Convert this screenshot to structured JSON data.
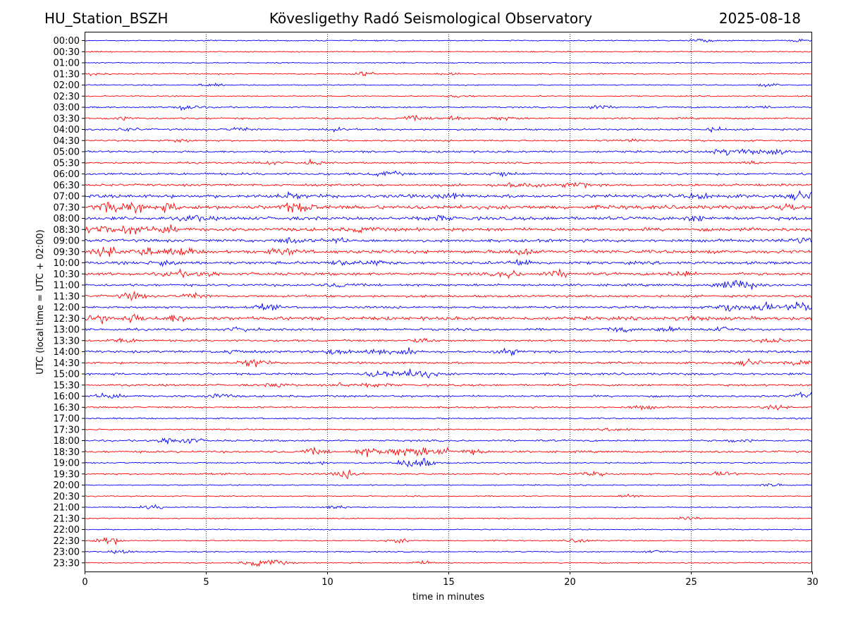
{
  "header": {
    "station": "HU_Station_BSZH",
    "observatory": "Kövesligethy Radó Seismological Observatory",
    "date": "2025-08-18"
  },
  "chart_data": {
    "type": "line",
    "title": "Kövesligethy Radó Seismological Observatory",
    "xlabel": "time in minutes",
    "ylabel": "UTC (local time = UTC + 02:00)",
    "xlim": [
      0,
      30
    ],
    "xticks": [
      0,
      5,
      10,
      15,
      20,
      25,
      30
    ],
    "grid": "vertical dotted lines at x = 5, 10, 15, 20, 25",
    "colors": [
      "#0000ff",
      "#ff0000"
    ],
    "rows": [
      {
        "label": "00:00",
        "color": "#0000ff",
        "level": 1,
        "events": [
          [
            25.5,
            1.5
          ],
          [
            29.5,
            1.2
          ]
        ]
      },
      {
        "label": "00:30",
        "color": "#ff0000",
        "level": 1,
        "events": []
      },
      {
        "label": "01:00",
        "color": "#0000ff",
        "level": 1,
        "events": []
      },
      {
        "label": "01:30",
        "color": "#ff0000",
        "level": 1,
        "events": [
          [
            0.3,
            1.5
          ],
          [
            11.5,
            2
          ],
          [
            15,
            1.5
          ]
        ]
      },
      {
        "label": "02:00",
        "color": "#0000ff",
        "level": 1,
        "events": [
          [
            5.2,
            1.3
          ],
          [
            28.3,
            1.3
          ]
        ]
      },
      {
        "label": "02:30",
        "color": "#ff0000",
        "level": 1,
        "events": [
          [
            15.5,
            1.3
          ]
        ]
      },
      {
        "label": "03:00",
        "color": "#0000ff",
        "level": 1.3,
        "events": [
          [
            4.2,
            3
          ],
          [
            21.2,
            2
          ],
          [
            28,
            1.6
          ]
        ]
      },
      {
        "label": "03:30",
        "color": "#ff0000",
        "level": 1.5,
        "events": [
          [
            1.5,
            1.6
          ],
          [
            13.5,
            1.8
          ],
          [
            15,
            2.5
          ],
          [
            17.3,
            1.6
          ]
        ]
      },
      {
        "label": "04:00",
        "color": "#0000ff",
        "level": 1.5,
        "events": [
          [
            1.8,
            1.5
          ],
          [
            6.4,
            1.6
          ],
          [
            10.3,
            1.5
          ],
          [
            26,
            1.6
          ]
        ]
      },
      {
        "label": "04:30",
        "color": "#ff0000",
        "level": 1.5,
        "events": [
          [
            4,
            1.3
          ],
          [
            22.8,
            1.5
          ]
        ]
      },
      {
        "label": "05:00",
        "color": "#0000ff",
        "level": 1.8,
        "events": [
          [
            26.3,
            3
          ],
          [
            27.3,
            2.5
          ],
          [
            28.5,
            2
          ]
        ]
      },
      {
        "label": "05:30",
        "color": "#ff0000",
        "level": 1.5,
        "events": [
          [
            9.3,
            2
          ],
          [
            7.5,
            1.5
          ],
          [
            27.5,
            1.5
          ]
        ]
      },
      {
        "label": "06:00",
        "color": "#0000ff",
        "level": 2,
        "events": [
          [
            12.5,
            2.5
          ],
          [
            17.2,
            2
          ]
        ]
      },
      {
        "label": "06:30",
        "color": "#ff0000",
        "level": 2,
        "events": [
          [
            20.3,
            3
          ],
          [
            17.5,
            2
          ],
          [
            18.5,
            1.8
          ]
        ]
      },
      {
        "label": "07:00",
        "color": "#0000ff",
        "level": 3,
        "events": [
          [
            8.5,
            2
          ],
          [
            15,
            2.5
          ],
          [
            25.5,
            2
          ],
          [
            29.7,
            4
          ]
        ]
      },
      {
        "label": "07:30",
        "color": "#ff0000",
        "level": 3.5,
        "events": [
          [
            1,
            4
          ],
          [
            2,
            4
          ],
          [
            3.5,
            3
          ],
          [
            8.5,
            3
          ],
          [
            9,
            3
          ],
          [
            29,
            3
          ]
        ]
      },
      {
        "label": "08:00",
        "color": "#0000ff",
        "level": 3,
        "events": [
          [
            4.5,
            2.5
          ],
          [
            14.5,
            2
          ],
          [
            25.2,
            2
          ]
        ]
      },
      {
        "label": "08:30",
        "color": "#ff0000",
        "level": 3,
        "events": [
          [
            0.7,
            4
          ],
          [
            2,
            4
          ],
          [
            3.3,
            3
          ],
          [
            11.5,
            2
          ]
        ]
      },
      {
        "label": "09:00",
        "color": "#0000ff",
        "level": 2.5,
        "events": [
          [
            8.5,
            3
          ],
          [
            10.3,
            2
          ],
          [
            29.5,
            3
          ]
        ]
      },
      {
        "label": "09:30",
        "color": "#ff0000",
        "level": 3,
        "events": [
          [
            1,
            4
          ],
          [
            2.5,
            4
          ],
          [
            4,
            4
          ],
          [
            8.2,
            3
          ],
          [
            18,
            3
          ]
        ]
      },
      {
        "label": "10:00",
        "color": "#0000ff",
        "level": 2.5,
        "events": [
          [
            3.3,
            3
          ],
          [
            10.6,
            2.5
          ],
          [
            18,
            3
          ],
          [
            12,
            2
          ]
        ]
      },
      {
        "label": "10:30",
        "color": "#ff0000",
        "level": 2.5,
        "events": [
          [
            3.8,
            2.5
          ],
          [
            5,
            2
          ],
          [
            17.5,
            3
          ],
          [
            19.5,
            3
          ],
          [
            24.5,
            2.5
          ]
        ]
      },
      {
        "label": "11:00",
        "color": "#0000ff",
        "level": 2,
        "events": [
          [
            10.5,
            2
          ],
          [
            26.5,
            4
          ],
          [
            27.3,
            4
          ]
        ]
      },
      {
        "label": "11:30",
        "color": "#ff0000",
        "level": 2,
        "events": [
          [
            2,
            3.5
          ],
          [
            4.5,
            2.5
          ]
        ]
      },
      {
        "label": "12:00",
        "color": "#0000ff",
        "level": 2,
        "events": [
          [
            7.5,
            2.5
          ],
          [
            26.5,
            4
          ],
          [
            28,
            4
          ],
          [
            29.5,
            5
          ]
        ]
      },
      {
        "label": "12:30",
        "color": "#ff0000",
        "level": 3,
        "events": [
          [
            0.5,
            4
          ],
          [
            2,
            3
          ],
          [
            3.8,
            3
          ],
          [
            25,
            2
          ]
        ]
      },
      {
        "label": "13:00",
        "color": "#0000ff",
        "level": 2,
        "events": [
          [
            6.5,
            2
          ],
          [
            22,
            2.5
          ],
          [
            24,
            2.5
          ],
          [
            26.3,
            3
          ]
        ]
      },
      {
        "label": "13:30",
        "color": "#ff0000",
        "level": 1.8,
        "events": [
          [
            1.6,
            2
          ],
          [
            14,
            2
          ],
          [
            28.3,
            2
          ]
        ]
      },
      {
        "label": "14:00",
        "color": "#0000ff",
        "level": 2,
        "events": [
          [
            10.5,
            3.5
          ],
          [
            12,
            3
          ],
          [
            13.5,
            2.5
          ],
          [
            17.5,
            2.5
          ],
          [
            6.3,
            2
          ]
        ]
      },
      {
        "label": "14:30",
        "color": "#ff0000",
        "level": 1.8,
        "events": [
          [
            7,
            4
          ],
          [
            27.5,
            3
          ],
          [
            29.5,
            2.5
          ]
        ]
      },
      {
        "label": "15:00",
        "color": "#0000ff",
        "level": 2,
        "events": [
          [
            12.2,
            4
          ],
          [
            13.3,
            3
          ],
          [
            14,
            3
          ]
        ]
      },
      {
        "label": "15:30",
        "color": "#ff0000",
        "level": 1.8,
        "events": [
          [
            8,
            2
          ],
          [
            10.5,
            2
          ],
          [
            12,
            2
          ]
        ]
      },
      {
        "label": "16:00",
        "color": "#0000ff",
        "level": 1.8,
        "events": [
          [
            0.9,
            2.5
          ],
          [
            5.5,
            2.5
          ],
          [
            29.8,
            3.5
          ]
        ]
      },
      {
        "label": "16:30",
        "color": "#ff0000",
        "level": 1.5,
        "events": [
          [
            23,
            1.8
          ],
          [
            28.5,
            1.6
          ]
        ]
      },
      {
        "label": "17:00",
        "color": "#0000ff",
        "level": 1.3,
        "events": []
      },
      {
        "label": "17:30",
        "color": "#ff0000",
        "level": 1.3,
        "events": [
          [
            22,
            1.5
          ]
        ]
      },
      {
        "label": "18:00",
        "color": "#0000ff",
        "level": 1.6,
        "events": [
          [
            3.5,
            3
          ],
          [
            4.3,
            2.5
          ],
          [
            27,
            1.6
          ]
        ]
      },
      {
        "label": "18:30",
        "color": "#ff0000",
        "level": 1.8,
        "events": [
          [
            9.5,
            2.5
          ],
          [
            11.7,
            4
          ],
          [
            13,
            4
          ],
          [
            13.8,
            3.5
          ],
          [
            14.7,
            3
          ],
          [
            16,
            2.5
          ]
        ]
      },
      {
        "label": "19:00",
        "color": "#0000ff",
        "level": 1.2,
        "events": [
          [
            9.5,
            1.8
          ],
          [
            13.2,
            2
          ],
          [
            13.8,
            6
          ]
        ]
      },
      {
        "label": "19:30",
        "color": "#ff0000",
        "level": 1.5,
        "events": [
          [
            10.8,
            3.5
          ],
          [
            21,
            1.6
          ],
          [
            26.3,
            2
          ]
        ]
      },
      {
        "label": "20:00",
        "color": "#0000ff",
        "level": 1,
        "events": [
          [
            28.5,
            1.5
          ]
        ]
      },
      {
        "label": "20:30",
        "color": "#ff0000",
        "level": 1,
        "events": [
          [
            22.5,
            1.5
          ]
        ]
      },
      {
        "label": "21:00",
        "color": "#0000ff",
        "level": 1,
        "events": [
          [
            2.8,
            2
          ],
          [
            10.5,
            2
          ]
        ]
      },
      {
        "label": "21:30",
        "color": "#ff0000",
        "level": 1,
        "events": [
          [
            25,
            1.3
          ]
        ]
      },
      {
        "label": "22:00",
        "color": "#0000ff",
        "level": 1,
        "events": []
      },
      {
        "label": "22:30",
        "color": "#ff0000",
        "level": 1,
        "events": [
          [
            1,
            4
          ],
          [
            13,
            1.8
          ],
          [
            20.4,
            2
          ]
        ]
      },
      {
        "label": "23:00",
        "color": "#0000ff",
        "level": 1,
        "events": [
          [
            1.6,
            1.5
          ],
          [
            23.5,
            1.6
          ]
        ]
      },
      {
        "label": "23:30",
        "color": "#ff0000",
        "level": 1,
        "events": [
          [
            7,
            2
          ],
          [
            7.5,
            2
          ],
          [
            8,
            1.6
          ],
          [
            14,
            1.5
          ]
        ]
      }
    ]
  }
}
